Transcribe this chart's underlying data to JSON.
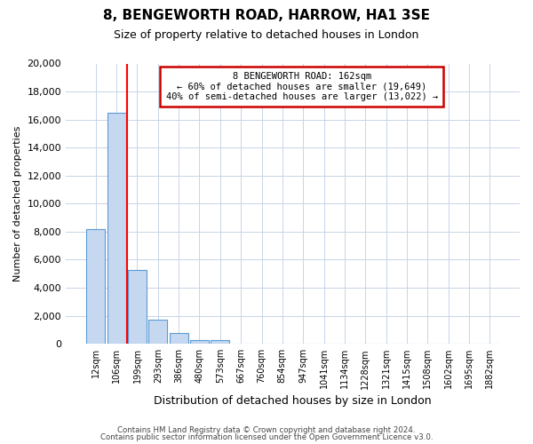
{
  "title": "8, BENGEWORTH ROAD, HARROW, HA1 3SE",
  "subtitle": "Size of property relative to detached houses in London",
  "xlabel": "Distribution of detached houses by size in London",
  "ylabel": "Number of detached properties",
  "bar_values": [
    8200,
    16500,
    5300,
    1750,
    750,
    250,
    250,
    0,
    0,
    0,
    0,
    0,
    0,
    0,
    0,
    0,
    0,
    0,
    0,
    0
  ],
  "bar_labels": [
    "12sqm",
    "106sqm",
    "199sqm",
    "293sqm",
    "386sqm",
    "480sqm",
    "573sqm",
    "667sqm",
    "760sqm",
    "854sqm",
    "947sqm",
    "1041sqm",
    "1134sqm",
    "1228sqm",
    "1321sqm",
    "1415sqm",
    "1508sqm",
    "1602sqm",
    "1695sqm",
    "1882sqm"
  ],
  "bar_color": "#c5d8f0",
  "bar_edge_color": "#5b9bd5",
  "red_line_x": 1.5,
  "annotation_text_line1": "8 BENGEWORTH ROAD: 162sqm",
  "annotation_text_line2": "← 60% of detached houses are smaller (19,649)",
  "annotation_text_line3": "40% of semi-detached houses are larger (13,022) →",
  "ylim": [
    0,
    20000
  ],
  "yticks": [
    0,
    2000,
    4000,
    6000,
    8000,
    10000,
    12000,
    14000,
    16000,
    18000,
    20000
  ],
  "footer_line1": "Contains HM Land Registry data © Crown copyright and database right 2024.",
  "footer_line2": "Contains public sector information licensed under the Open Government Licence v3.0.",
  "background_color": "#ffffff",
  "grid_color": "#c8d4e8",
  "annotation_box_color": "#ffffff",
  "annotation_box_edge": "#cc0000"
}
